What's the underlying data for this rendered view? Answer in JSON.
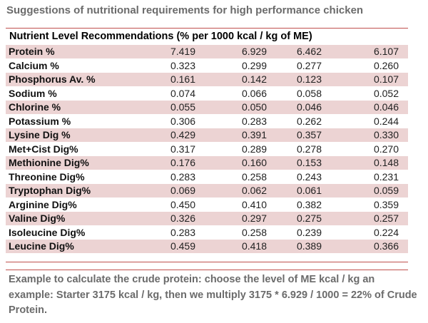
{
  "title": "Suggestions of nutritional requirements for high performance chicken",
  "table": {
    "header": "Nutrient Level Recommendations (% per 1000 kcal / kg of ME)",
    "rows": [
      {
        "nutrient": "Protein %",
        "values": [
          "7.419",
          "6.929",
          "6.462",
          "6.107"
        ]
      },
      {
        "nutrient": "Calcium %",
        "values": [
          "0.323",
          "0.299",
          "0.277",
          "0.260"
        ]
      },
      {
        "nutrient": "Phosphorus Av. %",
        "values": [
          "0.161",
          "0.142",
          "0.123",
          "0.107"
        ]
      },
      {
        "nutrient": "Sodium %",
        "values": [
          "0.074",
          "0.066",
          "0.058",
          "0.052"
        ]
      },
      {
        "nutrient": "Chlorine %",
        "values": [
          "0.055",
          "0.050",
          "0.046",
          "0.046"
        ]
      },
      {
        "nutrient": "Potassium %",
        "values": [
          "0.306",
          "0.283",
          "0.262",
          "0.244"
        ]
      },
      {
        "nutrient": "Lysine Dig %",
        "values": [
          "0.429",
          "0.391",
          "0.357",
          "0.330"
        ]
      },
      {
        "nutrient": "Met+Cist Dig%",
        "values": [
          "0.317",
          "0.289",
          "0.278",
          "0.270"
        ]
      },
      {
        "nutrient": "Methionine Dig%",
        "values": [
          "0.176",
          "0.160",
          "0.153",
          "0.148"
        ]
      },
      {
        "nutrient": "Threonine Dig%",
        "values": [
          "0.283",
          "0.258",
          "0.243",
          "0.231"
        ]
      },
      {
        "nutrient": "Tryptophan Dig%",
        "values": [
          "0.069",
          "0.062",
          "0.061",
          "0.059"
        ]
      },
      {
        "nutrient": "Arginine Dig%",
        "values": [
          "0.450",
          "0.410",
          "0.382",
          "0.359"
        ]
      },
      {
        "nutrient": "Valine Dig%",
        "values": [
          "0.326",
          "0.297",
          "0.275",
          "0.257"
        ]
      },
      {
        "nutrient": "Isoleucine Dig%",
        "values": [
          "0.283",
          "0.258",
          "0.239",
          "0.224"
        ]
      },
      {
        "nutrient": "Leucine Dig%",
        "values": [
          "0.459",
          "0.418",
          "0.389",
          "0.366"
        ]
      }
    ]
  },
  "note": "Example to calculate the crude protein: choose the level of ME kcal / kg an example: Starter 3175 kcal / kg, then we multiply 3175 * 6.929 / 1000 = 22% of Crude Protein.",
  "colors": {
    "row_shade": "#ecd3d3",
    "rule": "#c0504d",
    "title_text": "#6b6b6b"
  }
}
